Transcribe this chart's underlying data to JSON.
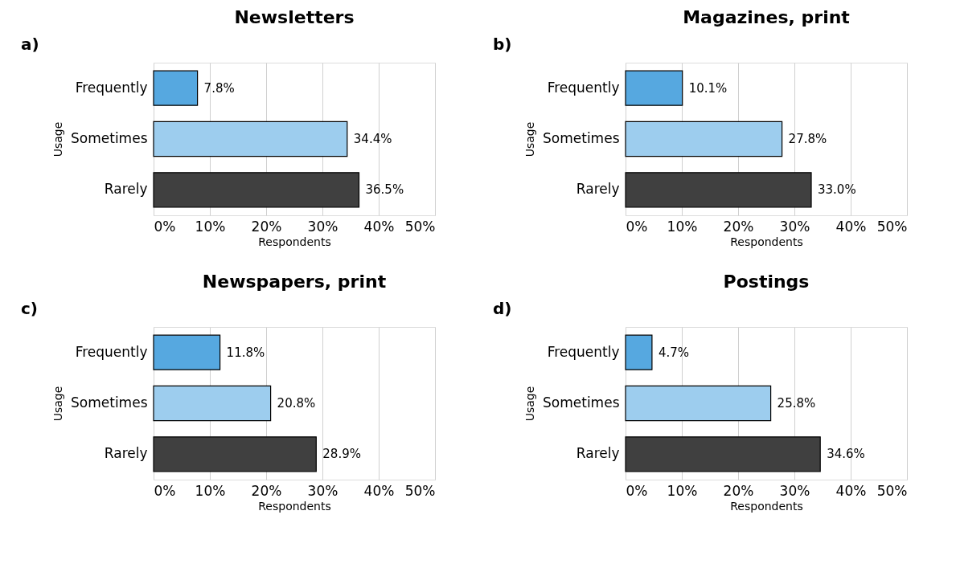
{
  "chart_data": [
    {
      "type": "bar",
      "orientation": "horizontal",
      "title": "Newsletters",
      "annotations": [
        "a)"
      ],
      "xlabel": "Respondents",
      "ylabel": "Usage",
      "categories": [
        "Frequently",
        "Sometimes",
        "Rarely"
      ],
      "values": [
        7.8,
        34.4,
        36.5
      ],
      "value_labels": [
        "7.8%",
        "34.4%",
        "36.5%"
      ],
      "colors": [
        "#56a8e0",
        "#9dcdee",
        "#404040"
      ],
      "xlim": [
        0,
        50
      ],
      "xticks": [
        {
          "value": 0,
          "label": "0%"
        },
        {
          "value": 10,
          "label": "10%"
        },
        {
          "value": 20,
          "label": "20%"
        },
        {
          "value": 30,
          "label": "30%"
        },
        {
          "value": 40,
          "label": "40%"
        },
        {
          "value": 50,
          "label": "50%"
        }
      ],
      "grid": "x",
      "legend": false
    },
    {
      "type": "bar",
      "orientation": "horizontal",
      "title": "Magazines, print",
      "annotations": [
        "b)"
      ],
      "xlabel": "Respondents",
      "ylabel": "Usage",
      "categories": [
        "Frequently",
        "Sometimes",
        "Rarely"
      ],
      "values": [
        10.1,
        27.8,
        33.0
      ],
      "value_labels": [
        "10.1%",
        "27.8%",
        "33.0%"
      ],
      "colors": [
        "#56a8e0",
        "#9dcdee",
        "#404040"
      ],
      "xlim": [
        0,
        50
      ],
      "xticks": [
        {
          "value": 0,
          "label": "0%"
        },
        {
          "value": 10,
          "label": "10%"
        },
        {
          "value": 20,
          "label": "20%"
        },
        {
          "value": 30,
          "label": "30%"
        },
        {
          "value": 40,
          "label": "40%"
        },
        {
          "value": 50,
          "label": "50%"
        }
      ],
      "grid": "x",
      "legend": false
    },
    {
      "type": "bar",
      "orientation": "horizontal",
      "title": "Newspapers, print",
      "annotations": [
        "c)"
      ],
      "xlabel": "Respondents",
      "ylabel": "Usage",
      "categories": [
        "Frequently",
        "Sometimes",
        "Rarely"
      ],
      "values": [
        11.8,
        20.8,
        28.9
      ],
      "value_labels": [
        "11.8%",
        "20.8%",
        "28.9%"
      ],
      "colors": [
        "#56a8e0",
        "#9dcdee",
        "#404040"
      ],
      "xlim": [
        0,
        50
      ],
      "xticks": [
        {
          "value": 0,
          "label": "0%"
        },
        {
          "value": 10,
          "label": "10%"
        },
        {
          "value": 20,
          "label": "20%"
        },
        {
          "value": 30,
          "label": "30%"
        },
        {
          "value": 40,
          "label": "40%"
        },
        {
          "value": 50,
          "label": "50%"
        }
      ],
      "grid": "x",
      "legend": false
    },
    {
      "type": "bar",
      "orientation": "horizontal",
      "title": "Postings",
      "annotations": [
        "d)"
      ],
      "xlabel": "Respondents",
      "ylabel": "Usage",
      "categories": [
        "Frequently",
        "Sometimes",
        "Rarely"
      ],
      "values": [
        4.7,
        25.8,
        34.6
      ],
      "value_labels": [
        "4.7%",
        "25.8%",
        "34.6%"
      ],
      "colors": [
        "#56a8e0",
        "#9dcdee",
        "#404040"
      ],
      "xlim": [
        0,
        50
      ],
      "xticks": [
        {
          "value": 0,
          "label": "0%"
        },
        {
          "value": 10,
          "label": "10%"
        },
        {
          "value": 20,
          "label": "20%"
        },
        {
          "value": 30,
          "label": "30%"
        },
        {
          "value": 40,
          "label": "40%"
        },
        {
          "value": 50,
          "label": "50%"
        }
      ],
      "grid": "x",
      "legend": false
    }
  ]
}
